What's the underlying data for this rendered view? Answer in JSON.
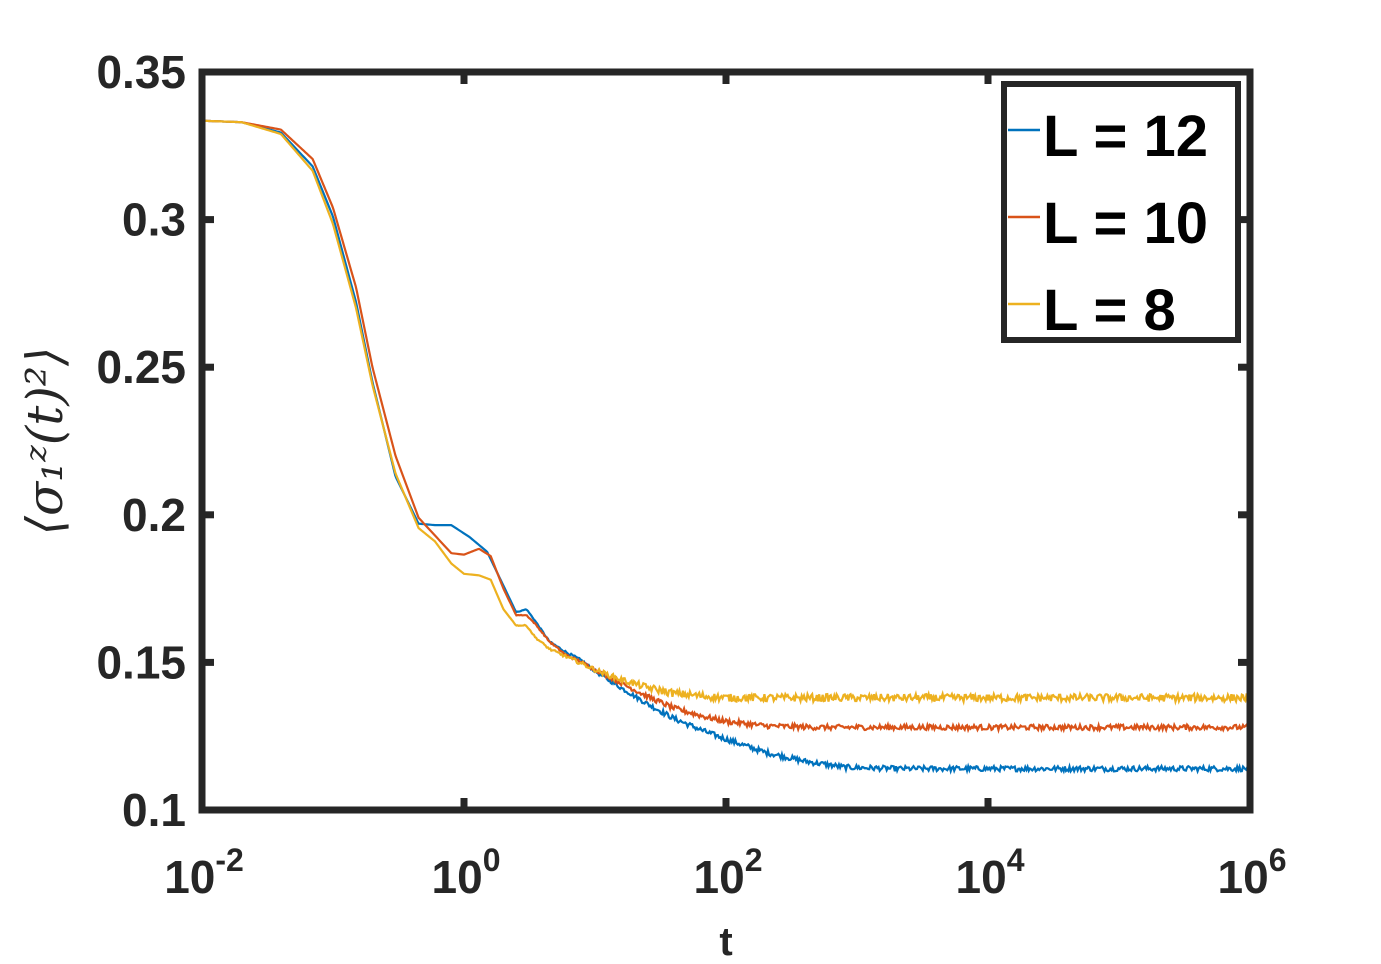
{
  "chart_data": {
    "type": "line",
    "xscale": "log",
    "xlabel": "t",
    "ylabel": "⟨σ₁ᶻ(t)²⟩",
    "xlim": [
      0.01,
      1000000
    ],
    "ylim": [
      0.1,
      0.35
    ],
    "x_ticks": [
      {
        "value": 0.01,
        "base": "10",
        "exp": "-2"
      },
      {
        "value": 1,
        "base": "10",
        "exp": "0"
      },
      {
        "value": 100,
        "base": "10",
        "exp": "2"
      },
      {
        "value": 10000,
        "base": "10",
        "exp": "4"
      },
      {
        "value": 1000000,
        "base": "10",
        "exp": "6"
      }
    ],
    "y_ticks": [
      {
        "value": 0.1,
        "label": "0.1"
      },
      {
        "value": 0.15,
        "label": "0.15"
      },
      {
        "value": 0.2,
        "label": "0.2"
      },
      {
        "value": 0.25,
        "label": "0.25"
      },
      {
        "value": 0.3,
        "label": "0.3"
      },
      {
        "value": 0.35,
        "label": "0.35"
      }
    ],
    "grid": false,
    "legend_position": "top-right",
    "series": [
      {
        "name": "L = 12",
        "color": "#0072BD",
        "noise": 0.0009,
        "points": [
          [
            0.01,
            0.3335
          ],
          [
            0.02,
            0.333
          ],
          [
            0.04,
            0.3295
          ],
          [
            0.07,
            0.318
          ],
          [
            0.1,
            0.301
          ],
          [
            0.15,
            0.272
          ],
          [
            0.2,
            0.245
          ],
          [
            0.3,
            0.213
          ],
          [
            0.45,
            0.197
          ],
          [
            0.6,
            0.1965
          ],
          [
            0.8,
            0.1965
          ],
          [
            1.1,
            0.1925
          ],
          [
            1.5,
            0.1875
          ],
          [
            2.0,
            0.176
          ],
          [
            2.5,
            0.167
          ],
          [
            3.0,
            0.168
          ],
          [
            3.5,
            0.164
          ],
          [
            4.5,
            0.157
          ],
          [
            6.0,
            0.1535
          ],
          [
            8,
            0.1505
          ],
          [
            10,
            0.147
          ],
          [
            15,
            0.142
          ],
          [
            25,
            0.136
          ],
          [
            40,
            0.131
          ],
          [
            70,
            0.1265
          ],
          [
            100,
            0.124
          ],
          [
            200,
            0.1195
          ],
          [
            400,
            0.1165
          ],
          [
            800,
            0.1145
          ],
          [
            2000,
            0.114
          ],
          [
            10000,
            0.114
          ],
          [
            1000000,
            0.114
          ]
        ]
      },
      {
        "name": "L = 10",
        "color": "#D95319",
        "noise": 0.0009,
        "points": [
          [
            0.01,
            0.3335
          ],
          [
            0.02,
            0.333
          ],
          [
            0.04,
            0.3305
          ],
          [
            0.07,
            0.3205
          ],
          [
            0.1,
            0.304
          ],
          [
            0.15,
            0.277
          ],
          [
            0.2,
            0.25
          ],
          [
            0.3,
            0.22
          ],
          [
            0.45,
            0.199
          ],
          [
            0.6,
            0.193
          ],
          [
            0.8,
            0.187
          ],
          [
            1.0,
            0.1865
          ],
          [
            1.3,
            0.1885
          ],
          [
            1.6,
            0.186
          ],
          [
            2.0,
            0.175
          ],
          [
            2.5,
            0.166
          ],
          [
            3.0,
            0.166
          ],
          [
            3.5,
            0.163
          ],
          [
            4.5,
            0.157
          ],
          [
            6,
            0.1525
          ],
          [
            8,
            0.15
          ],
          [
            10,
            0.1475
          ],
          [
            15,
            0.1435
          ],
          [
            25,
            0.1385
          ],
          [
            40,
            0.1345
          ],
          [
            70,
            0.1315
          ],
          [
            100,
            0.13
          ],
          [
            200,
            0.1285
          ],
          [
            500,
            0.128
          ],
          [
            2000,
            0.128
          ],
          [
            1000000,
            0.128
          ]
        ]
      },
      {
        "name": "L = 8",
        "color": "#EDB120",
        "noise": 0.0013,
        "points": [
          [
            0.01,
            0.3335
          ],
          [
            0.02,
            0.333
          ],
          [
            0.04,
            0.329
          ],
          [
            0.07,
            0.3165
          ],
          [
            0.1,
            0.2985
          ],
          [
            0.15,
            0.27
          ],
          [
            0.2,
            0.244
          ],
          [
            0.3,
            0.214
          ],
          [
            0.45,
            0.1955
          ],
          [
            0.6,
            0.191
          ],
          [
            0.8,
            0.1835
          ],
          [
            1.0,
            0.18
          ],
          [
            1.3,
            0.1795
          ],
          [
            1.6,
            0.178
          ],
          [
            2.0,
            0.168
          ],
          [
            2.5,
            0.1625
          ],
          [
            3.0,
            0.1625
          ],
          [
            3.5,
            0.1585
          ],
          [
            4.5,
            0.1545
          ],
          [
            6,
            0.152
          ],
          [
            8,
            0.1495
          ],
          [
            10,
            0.1475
          ],
          [
            15,
            0.1445
          ],
          [
            25,
            0.1415
          ],
          [
            40,
            0.1395
          ],
          [
            70,
            0.1385
          ],
          [
            100,
            0.138
          ],
          [
            1000,
            0.138
          ],
          [
            1000000,
            0.138
          ]
        ]
      }
    ]
  }
}
